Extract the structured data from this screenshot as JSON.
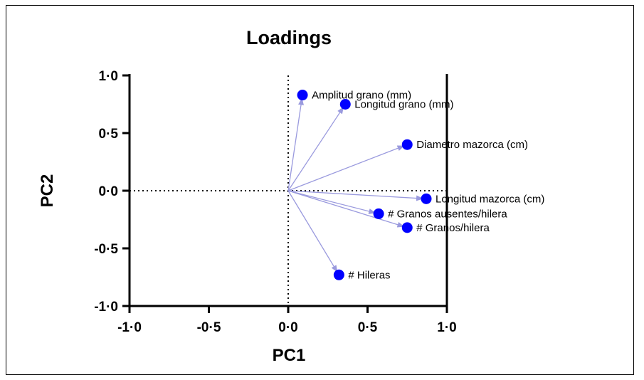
{
  "chart_data": {
    "type": "scatter",
    "title": "Loadings",
    "xlabel": "PC1",
    "ylabel": "PC2",
    "xlim": [
      -1.0,
      1.0
    ],
    "ylim": [
      -1.0,
      1.0
    ],
    "x_ticks": [
      -1.0,
      -0.5,
      0.0,
      0.5,
      1.0
    ],
    "y_ticks": [
      -1.0,
      -0.5,
      0.0,
      0.5,
      1.0
    ],
    "x_tick_labels": [
      "-1·0",
      "-0·5",
      "0·0",
      "0·5",
      "1·0"
    ],
    "y_tick_labels": [
      "-1·0",
      "-0·5",
      "0·0",
      "0·5",
      "1·0"
    ],
    "grid": false,
    "reference_lines": [
      "x=0 dotted",
      "y=0 dotted"
    ],
    "marker_color": "#0000ff",
    "arrow_color": "#9a9ade",
    "points": [
      {
        "label": "Amplitud grano (mm)",
        "x": 0.09,
        "y": 0.83
      },
      {
        "label": "Longitud grano (mm)",
        "x": 0.36,
        "y": 0.75
      },
      {
        "label": "Diametro mazorca (cm)",
        "x": 0.75,
        "y": 0.4
      },
      {
        "label": "Longitud mazorca (cm)",
        "x": 0.87,
        "y": -0.07
      },
      {
        "label": "# Granos ausentes/hilera",
        "x": 0.57,
        "y": -0.2
      },
      {
        "label": "# Granos/hilera",
        "x": 0.75,
        "y": -0.32
      },
      {
        "label": "# Hileras",
        "x": 0.32,
        "y": -0.73
      }
    ]
  }
}
